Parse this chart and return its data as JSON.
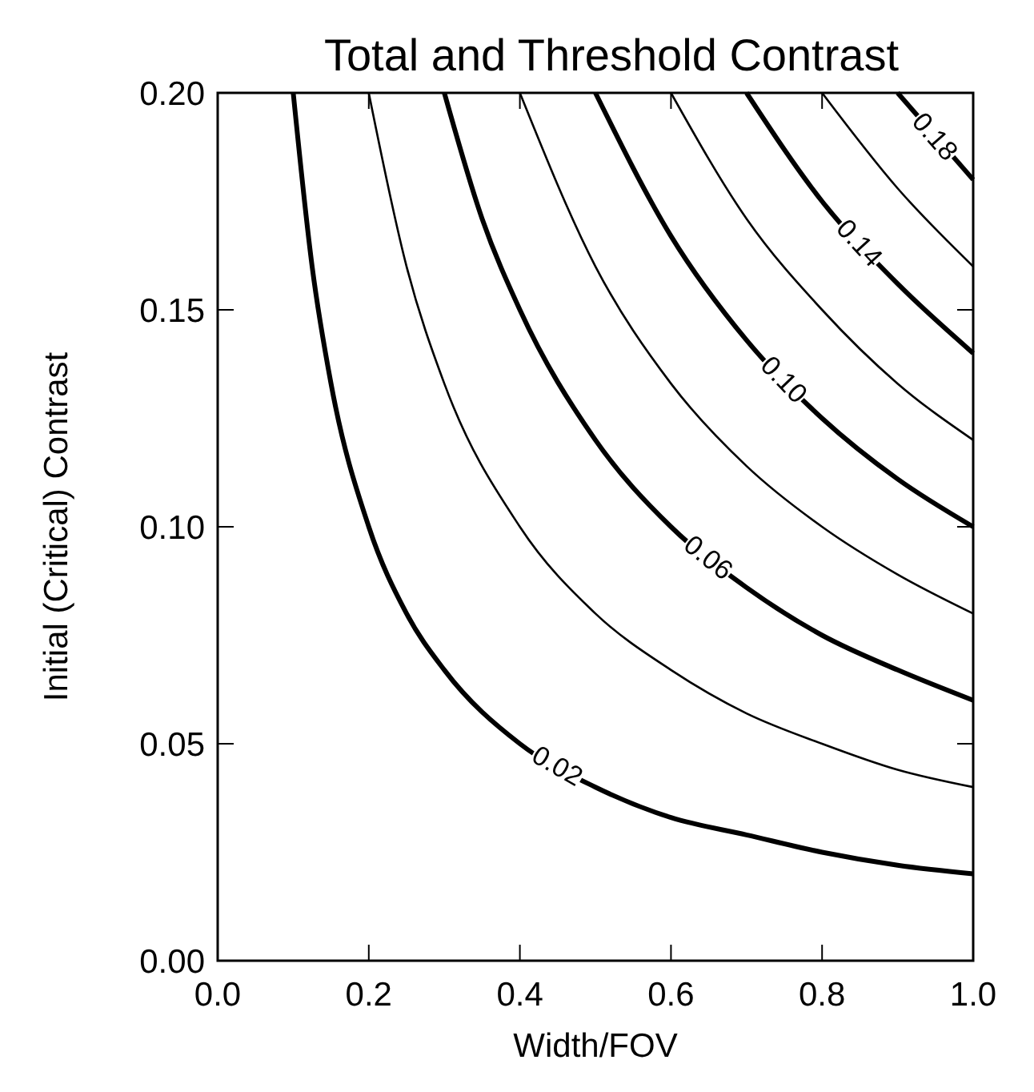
{
  "chart_data": {
    "type": "line",
    "title": "Total and Threshold Contrast",
    "xlabel": "Width/FOV",
    "ylabel": "Initial (Critical) Contrast",
    "xlim": [
      0,
      1
    ],
    "xticks": [
      {
        "value": 0,
        "label": "0.0"
      },
      {
        "value": 0.2,
        "label": "0.2"
      },
      {
        "value": 0.4,
        "label": "0.4"
      },
      {
        "value": 0.6,
        "label": "0.6"
      },
      {
        "value": 0.8,
        "label": "0.8"
      },
      {
        "value": 1,
        "label": "1.0"
      }
    ],
    "ylim": [
      0,
      0.2
    ],
    "yticks": [
      {
        "value": 0,
        "label": "0.00"
      },
      {
        "value": 0.05,
        "label": "0.05"
      },
      {
        "value": 0.1,
        "label": "0.10"
      },
      {
        "value": 0.15,
        "label": "0.15"
      },
      {
        "value": 0.2,
        "label": "0.20"
      }
    ],
    "grid": false,
    "marker": "none",
    "line_style": "solid",
    "series": [
      {
        "name": "0.02",
        "color": "#000000",
        "x": [
          0.1,
          0.125,
          0.15,
          0.2,
          0.25,
          0.3,
          0.4,
          0.5,
          0.6,
          0.7,
          0.8,
          0.9,
          1.0
        ],
        "values": [
          0.2,
          0.16,
          0.133,
          0.1,
          0.08,
          0.067,
          0.05,
          0.04,
          0.033,
          0.029,
          0.025,
          0.022,
          0.02
        ]
      },
      {
        "color": "#000000",
        "x": [
          0.2,
          0.25,
          0.3,
          0.4,
          0.5,
          0.6,
          0.7,
          0.8,
          0.9,
          1.0
        ],
        "values": [
          0.2,
          0.16,
          0.133,
          0.1,
          0.08,
          0.067,
          0.057,
          0.05,
          0.044,
          0.04
        ]
      },
      {
        "name": "0.06",
        "color": "#000000",
        "x": [
          0.3,
          0.35,
          0.4,
          0.5,
          0.6,
          0.7,
          0.8,
          0.9,
          1.0
        ],
        "values": [
          0.2,
          0.171,
          0.15,
          0.12,
          0.1,
          0.086,
          0.075,
          0.067,
          0.06
        ]
      },
      {
        "color": "#000000",
        "x": [
          0.4,
          0.5,
          0.6,
          0.7,
          0.8,
          0.9,
          1.0
        ],
        "values": [
          0.2,
          0.16,
          0.133,
          0.114,
          0.1,
          0.089,
          0.08
        ]
      },
      {
        "name": "0.10",
        "color": "#000000",
        "x": [
          0.5,
          0.6,
          0.7,
          0.8,
          0.9,
          1.0
        ],
        "values": [
          0.2,
          0.167,
          0.143,
          0.125,
          0.111,
          0.1
        ]
      },
      {
        "color": "#000000",
        "x": [
          0.6,
          0.7,
          0.8,
          0.9,
          1.0
        ],
        "values": [
          0.2,
          0.171,
          0.15,
          0.133,
          0.12
        ]
      },
      {
        "name": "0.14",
        "color": "#000000",
        "x": [
          0.7,
          0.8,
          0.9,
          1.0
        ],
        "values": [
          0.2,
          0.175,
          0.156,
          0.14
        ]
      },
      {
        "color": "#000000",
        "x": [
          0.8,
          0.9,
          1.0
        ],
        "values": [
          0.2,
          0.178,
          0.16
        ]
      },
      {
        "name": "0.18",
        "color": "#000000",
        "x": [
          0.9,
          1.0
        ],
        "values": [
          0.2,
          0.18
        ]
      }
    ]
  }
}
